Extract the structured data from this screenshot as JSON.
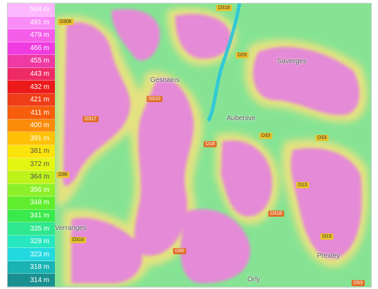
{
  "legend": {
    "entries": [
      {
        "label": "504 m",
        "color": "#fcb7ff",
        "text": "#ffffff"
      },
      {
        "label": "491 m",
        "color": "#f98cf7",
        "text": "#ffffff"
      },
      {
        "label": "479 m",
        "color": "#f45ee9",
        "text": "#ffffff"
      },
      {
        "label": "466 m",
        "color": "#ef3ce0",
        "text": "#ffffff"
      },
      {
        "label": "455 m",
        "color": "#ef3aa3",
        "text": "#ffffff"
      },
      {
        "label": "443 m",
        "color": "#ee2a65",
        "text": "#ffffff"
      },
      {
        "label": "432 m",
        "color": "#ec1a1a",
        "text": "#ffffff"
      },
      {
        "label": "421 m",
        "color": "#ef3d17",
        "text": "#ffffff"
      },
      {
        "label": "411 m",
        "color": "#f65e0d",
        "text": "#ffffff"
      },
      {
        "label": "400 m",
        "color": "#fb8c09",
        "text": "#ffffff"
      },
      {
        "label": "391 m",
        "color": "#fec108",
        "text": "#ffffff"
      },
      {
        "label": "381 m",
        "color": "#fbe40c",
        "text": "#555555"
      },
      {
        "label": "372 m",
        "color": "#e3f510",
        "text": "#555555"
      },
      {
        "label": "364 m",
        "color": "#bdf21a",
        "text": "#555555"
      },
      {
        "label": "356 m",
        "color": "#8cf029",
        "text": "#ffffff"
      },
      {
        "label": "348 m",
        "color": "#5fed2e",
        "text": "#ffffff"
      },
      {
        "label": "341 m",
        "color": "#3ae94b",
        "text": "#ffffff"
      },
      {
        "label": "335 m",
        "color": "#2ee78f",
        "text": "#ffffff"
      },
      {
        "label": "328 m",
        "color": "#27e7c1",
        "text": "#ffffff"
      },
      {
        "label": "323 m",
        "color": "#22d9e0",
        "text": "#ffffff"
      },
      {
        "label": "318 m",
        "color": "#1ab3b3",
        "text": "#ffffff"
      },
      {
        "label": "314 m",
        "color": "#1a8f8f",
        "text": "#ffffff"
      }
    ]
  },
  "places": {
    "gesnains": "Gesnains",
    "aubenive": "Aubenive",
    "saverges": "Saverges",
    "verranges": "Verranges",
    "prexley": "Prexley",
    "orly": "Orly"
  },
  "roads": {
    "r1": "D308",
    "r2": "D310",
    "r3": "D317",
    "r4": "D29",
    "r5": "D18",
    "r6": "D33",
    "r7": "D33",
    "r8": "D38",
    "r9": "D13",
    "r10": "D318",
    "r11": "D316",
    "r12": "D30",
    "r13": "D13",
    "r14": "D318",
    "r15": "D53"
  },
  "colors": {
    "plateau": "#e58ad6",
    "valley": "#7de08a",
    "slope": "#f0e07a",
    "river": "#22c4e0"
  }
}
